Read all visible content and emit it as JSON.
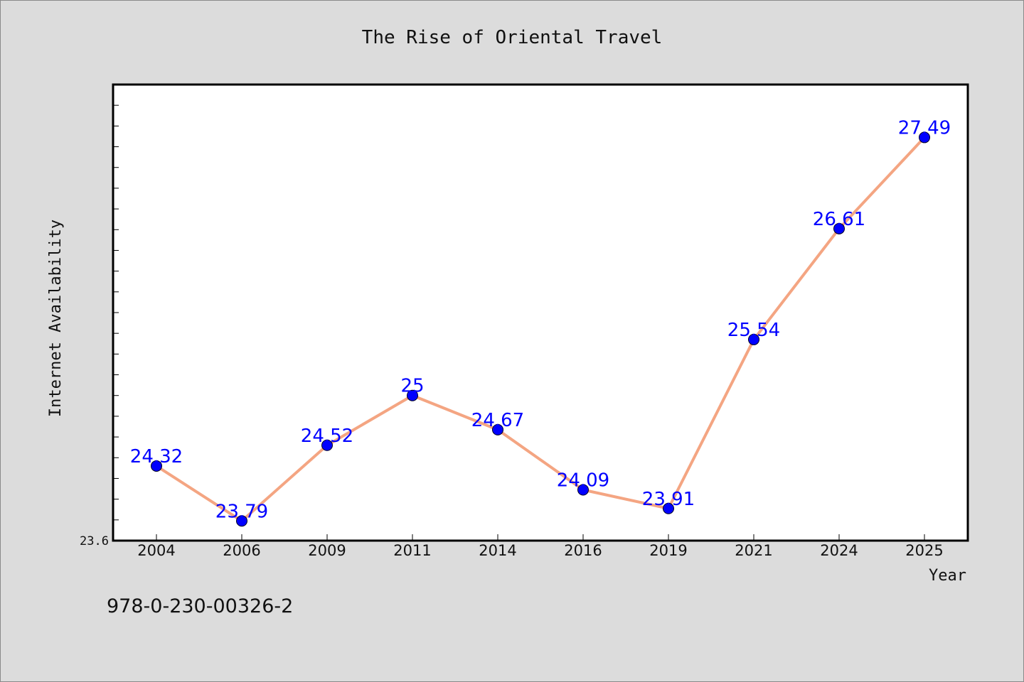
{
  "chart_data": {
    "type": "line",
    "title": "The Rise of Oriental Travel",
    "xlabel": "Year",
    "ylabel": "Internet Availability",
    "categories": [
      "2004",
      "2006",
      "2009",
      "2011",
      "2014",
      "2016",
      "2019",
      "2021",
      "2024",
      "2025"
    ],
    "series": [
      {
        "values": [
          24.32,
          23.79,
          24.52,
          25,
          24.67,
          24.09,
          23.91,
          25.54,
          26.61,
          27.49
        ],
        "labels": [
          "24.32",
          "23.79",
          "24.52",
          "25",
          "24.67",
          "24.09",
          "23.91",
          "25.54",
          "26.61",
          "27.49"
        ]
      }
    ],
    "ylim": [
      23.6,
      28.0
    ],
    "y_tick_labels": [
      "23.6"
    ],
    "grid": false,
    "line_color": "#f4a582",
    "marker_color": "#0000ff",
    "label_color": "#0000ff"
  },
  "footer": {
    "isbn": "978-0-230-00326-2"
  }
}
